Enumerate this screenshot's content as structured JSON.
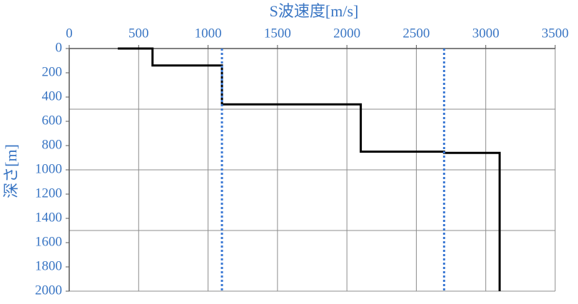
{
  "chart_data": {
    "type": "line",
    "title": "S波速度[m/s]",
    "ylabel": "深さ[m]",
    "x_axis_position": "top",
    "y_inverted": true,
    "xlim": [
      0,
      3500
    ],
    "xticks": [
      0,
      500,
      1000,
      1500,
      2000,
      2500,
      3000,
      3500
    ],
    "ylim": [
      0,
      2000
    ],
    "yticks": [
      0,
      200,
      400,
      600,
      800,
      1000,
      1200,
      1400,
      1600,
      1800,
      2000
    ],
    "xgrid": true,
    "ygrid": [
      500,
      1000,
      1500,
      2000
    ],
    "series": [
      {
        "color": "#000000",
        "style": "solid",
        "x": [
          350,
          600,
          600,
          1100,
          1100,
          2100,
          2100,
          2700,
          2700,
          3100,
          3100
        ],
        "values": [
          0,
          0,
          140,
          140,
          460,
          460,
          850,
          850,
          860,
          860,
          2000
        ]
      },
      {
        "color": "#3a78d4",
        "style": "dotted",
        "x": [
          1100,
          1100
        ],
        "values": [
          0,
          2000
        ]
      },
      {
        "color": "#3a78d4",
        "style": "dotted",
        "x": [
          2700,
          2700
        ],
        "values": [
          0,
          2000
        ]
      }
    ]
  }
}
